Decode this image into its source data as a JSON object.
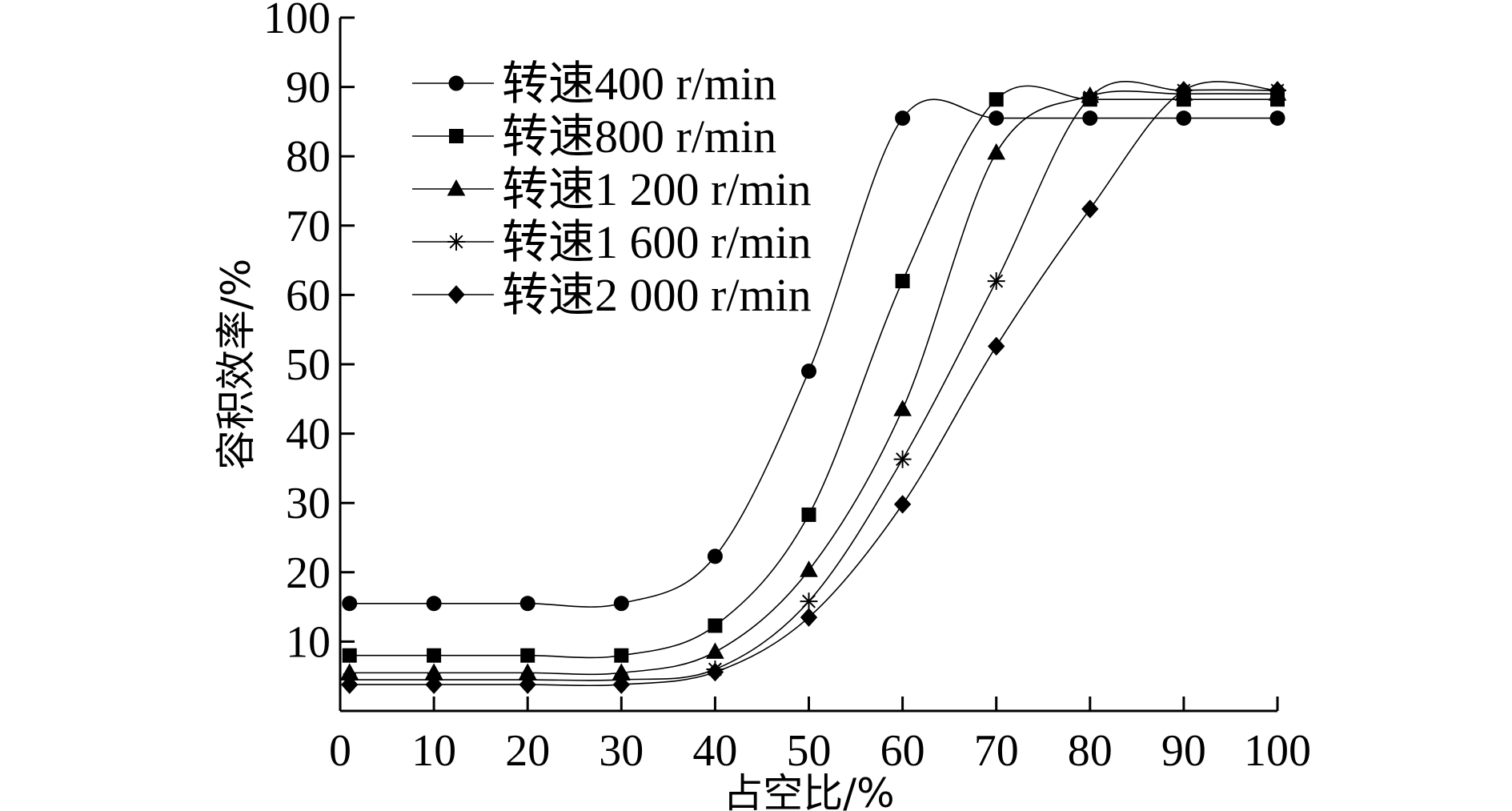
{
  "chart_data": {
    "type": "line",
    "xlabel": "占空比/%",
    "ylabel": "容积效率/%",
    "xlim": [
      0,
      100
    ],
    "ylim": [
      0,
      100
    ],
    "xticks": [
      "0",
      "10",
      "20",
      "30",
      "40",
      "50",
      "60",
      "70",
      "80",
      "90",
      "100"
    ],
    "yticks": [
      "10",
      "20",
      "30",
      "40",
      "50",
      "60",
      "70",
      "80",
      "90",
      "100"
    ],
    "legend_position": "top-left",
    "x": [
      1,
      10,
      20,
      30,
      40,
      50,
      60,
      70,
      80,
      90,
      100
    ],
    "series": [
      {
        "name": "转速400 r/min",
        "marker": "circle",
        "values": [
          15.5,
          15.5,
          15.5,
          15.5,
          22.3,
          49,
          85.5,
          85.5,
          85.5,
          85.5,
          85.5
        ]
      },
      {
        "name": "转速800 r/min",
        "marker": "square",
        "values": [
          8,
          8,
          8,
          8,
          12.3,
          28.3,
          62,
          88.2,
          88.2,
          88.2,
          88.2
        ]
      },
      {
        "name": "转速1 200 r/min",
        "marker": "triangle",
        "values": [
          5.5,
          5.5,
          5.5,
          5.5,
          8.5,
          20.3,
          43.5,
          80.5,
          88.7,
          89,
          89
        ]
      },
      {
        "name": "转速1 600 r/min",
        "marker": "asterisk",
        "values": [
          4.5,
          4.5,
          4.5,
          4.5,
          6,
          15.8,
          36.3,
          62,
          88.5,
          89.5,
          89.5
        ]
      },
      {
        "name": "转速2 000 r/min",
        "marker": "diamond",
        "values": [
          3.8,
          3.8,
          3.8,
          3.8,
          5.6,
          13.5,
          29.8,
          52.6,
          72.4,
          89.5,
          89.5
        ]
      }
    ]
  }
}
